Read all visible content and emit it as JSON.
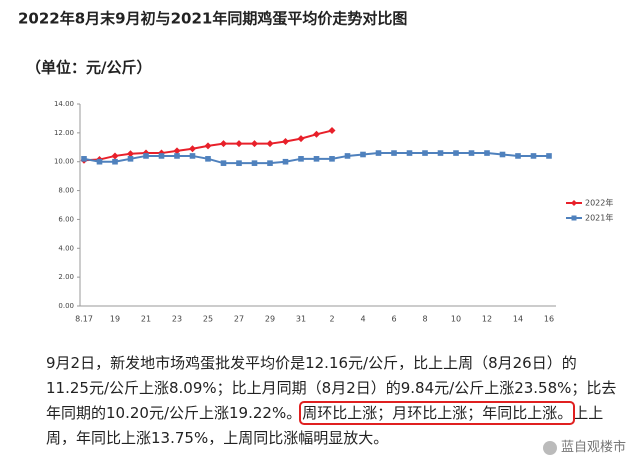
{
  "chart_data": {
    "type": "line",
    "title": "2022年8月末9月初与2021年同期鸡蛋平均价走势对比图",
    "subtitle": "（单位：元/公斤）",
    "categories": [
      "8.17",
      null,
      "19",
      null,
      "21",
      null,
      "23",
      null,
      "25",
      null,
      "27",
      null,
      "29",
      null,
      "31",
      null,
      "2",
      null,
      "4",
      null,
      "6",
      null,
      "8",
      null,
      "10",
      null,
      "12",
      null,
      "14",
      null,
      "16"
    ],
    "series": [
      {
        "name": "2022年",
        "color": "#e8202a",
        "marker": "diamond",
        "values": [
          10.1,
          10.15,
          10.4,
          10.55,
          10.6,
          10.6,
          10.75,
          10.9,
          11.1,
          11.25,
          11.25,
          11.25,
          11.25,
          11.4,
          11.6,
          11.9,
          12.16,
          null,
          null,
          null,
          null,
          null,
          null,
          null,
          null,
          null,
          null,
          null,
          null,
          null,
          null
        ]
      },
      {
        "name": "2021年",
        "color": "#4f81bd",
        "marker": "square",
        "values": [
          10.2,
          10.0,
          10.0,
          10.2,
          10.4,
          10.4,
          10.4,
          10.4,
          10.2,
          9.9,
          9.9,
          9.9,
          9.9,
          10.0,
          10.2,
          10.2,
          10.2,
          10.4,
          10.5,
          10.6,
          10.6,
          10.6,
          10.6,
          10.6,
          10.6,
          10.6,
          10.6,
          10.5,
          10.4,
          10.4,
          10.4
        ]
      }
    ],
    "ylim": [
      0,
      14
    ],
    "yticks": [
      {
        "value": 0,
        "label": "0.00"
      },
      {
        "value": 2,
        "label": "2.00"
      },
      {
        "value": 4,
        "label": "4.00"
      },
      {
        "value": 6,
        "label": "6.00"
      },
      {
        "value": 8,
        "label": "8.00"
      },
      {
        "value": 10,
        "label": "10.00"
      },
      {
        "value": 12,
        "label": "12.00"
      },
      {
        "value": 14,
        "label": "14.00"
      }
    ],
    "grid": false,
    "legend": "right"
  },
  "article": {
    "lines": [
      [
        "9月2日，新发地市场鸡蛋批发平均价是12.16元/公斤，比上上周（8月26日）的"
      ],
      [
        "11.25元/公斤上涨8.09%；比上月同期（8月2日）的9.84元/公斤上涨23.58%；比去"
      ],
      [
        "年同期的10.20元/公斤上涨19.22%。",
        "周环比上涨；月环比上涨；年同比上涨。",
        "上上"
      ],
      [
        "周，年同比上涨13.75%，上周同比涨幅明显放大。"
      ]
    ],
    "highlight": [
      2,
      1
    ],
    "watermark": "蓝自观楼市"
  }
}
